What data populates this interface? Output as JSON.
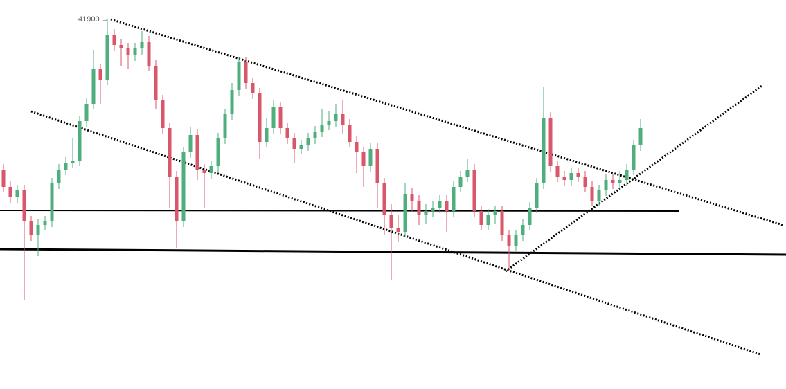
{
  "chart_data": {
    "type": "candlestick",
    "high_label": "41900 →",
    "up_color": "#4fae7e",
    "down_color": "#d9566b",
    "ylim": [
      36560,
      42180
    ],
    "open": [
      39730,
      39480,
      39330,
      39430,
      38980,
      38780,
      38930,
      38980,
      39530,
      39730,
      39830,
      39860,
      40430,
      40680,
      41180,
      41030,
      41680,
      41530,
      41480,
      41380,
      41480,
      41580,
      41230,
      40730,
      40330,
      39630,
      38980,
      39980,
      40230,
      39730,
      39680,
      39780,
      40180,
      40530,
      40880,
      41280,
      40980,
      40830,
      40130,
      40330,
      40630,
      40330,
      40180,
      40030,
      40080,
      40180,
      40280,
      40380,
      40430,
      40530,
      40380,
      40130,
      39980,
      39780,
      40030,
      39530,
      39080,
      38880,
      38830,
      39380,
      39280,
      39080,
      39130,
      39180,
      39280,
      39130,
      39480,
      39630,
      39730,
      39130,
      38930,
      39080,
      39130,
      38780,
      38630,
      38780,
      38930,
      39180,
      39530,
      40480,
      39780,
      39630,
      39580,
      39680,
      39630,
      39480,
      39280,
      39430,
      39580,
      39530,
      39580,
      39730,
      40080
    ],
    "high": [
      39810,
      39560,
      39510,
      39510,
      39060,
      39010,
      39060,
      39610,
      39810,
      39910,
      40180,
      40510,
      40760,
      41460,
      41260,
      41900,
      41760,
      41610,
      41560,
      41560,
      41730,
      41660,
      41310,
      40810,
      40410,
      39710,
      40060,
      40350,
      40310,
      39810,
      39860,
      40260,
      40610,
      40980,
      41360,
      41360,
      41060,
      40910,
      40480,
      40730,
      40710,
      40410,
      40260,
      40160,
      40260,
      40360,
      40600,
      40580,
      40680,
      40730,
      40460,
      40210,
      40060,
      40110,
      40110,
      39610,
      39230,
      39080,
      39530,
      39460,
      39360,
      39230,
      39280,
      39360,
      39360,
      39560,
      39710,
      39880,
      39810,
      39210,
      39160,
      39210,
      39210,
      38860,
      38860,
      39010,
      39260,
      39610,
      40930,
      40560,
      39860,
      39710,
      39760,
      39760,
      39710,
      39560,
      39510,
      39660,
      39660,
      39710,
      39810,
      40160,
      40460
    ],
    "low": [
      39400,
      39250,
      39250,
      37850,
      38700,
      38480,
      38850,
      38900,
      39450,
      39650,
      39750,
      39780,
      40350,
      40600,
      40680,
      40950,
      41450,
      41230,
      41180,
      41300,
      41380,
      41150,
      40600,
      40250,
      39180,
      38600,
      38900,
      39900,
      39580,
      39180,
      39600,
      39700,
      40100,
      40450,
      40800,
      40900,
      40750,
      39880,
      40050,
      40250,
      40250,
      40100,
      39830,
      39950,
      40000,
      40100,
      40200,
      40300,
      40350,
      40250,
      40050,
      39680,
      39480,
      39700,
      39180,
      38780,
      38130,
      38680,
      38750,
      39130,
      38930,
      38950,
      39050,
      39100,
      38830,
      39050,
      39400,
      39550,
      39050,
      38850,
      38850,
      38950,
      38700,
      38280,
      38550,
      38700,
      38850,
      39100,
      39450,
      39700,
      39550,
      39500,
      39500,
      39550,
      39400,
      39200,
      39200,
      39350,
      39450,
      39450,
      39500,
      39650,
      40000
    ],
    "close": [
      39480,
      39330,
      39430,
      38980,
      38780,
      38930,
      38980,
      39530,
      39730,
      39830,
      39860,
      40430,
      40680,
      41180,
      41030,
      41680,
      41530,
      41480,
      41380,
      41480,
      41580,
      41230,
      40730,
      40330,
      39630,
      38980,
      39980,
      40230,
      39730,
      39680,
      39780,
      40180,
      40530,
      40880,
      41280,
      40980,
      40830,
      40130,
      40330,
      40630,
      40330,
      40180,
      40030,
      40080,
      40180,
      40280,
      40380,
      40430,
      40530,
      40380,
      40130,
      39980,
      39780,
      40030,
      39530,
      39080,
      38880,
      38830,
      39380,
      39280,
      39080,
      39130,
      39180,
      39280,
      39130,
      39480,
      39630,
      39730,
      39130,
      38930,
      39080,
      39130,
      38780,
      38630,
      38780,
      38930,
      39180,
      39530,
      40480,
      39780,
      39630,
      39580,
      39680,
      39630,
      39480,
      39280,
      39430,
      39580,
      39530,
      39580,
      39730,
      40080,
      40330
    ]
  }
}
